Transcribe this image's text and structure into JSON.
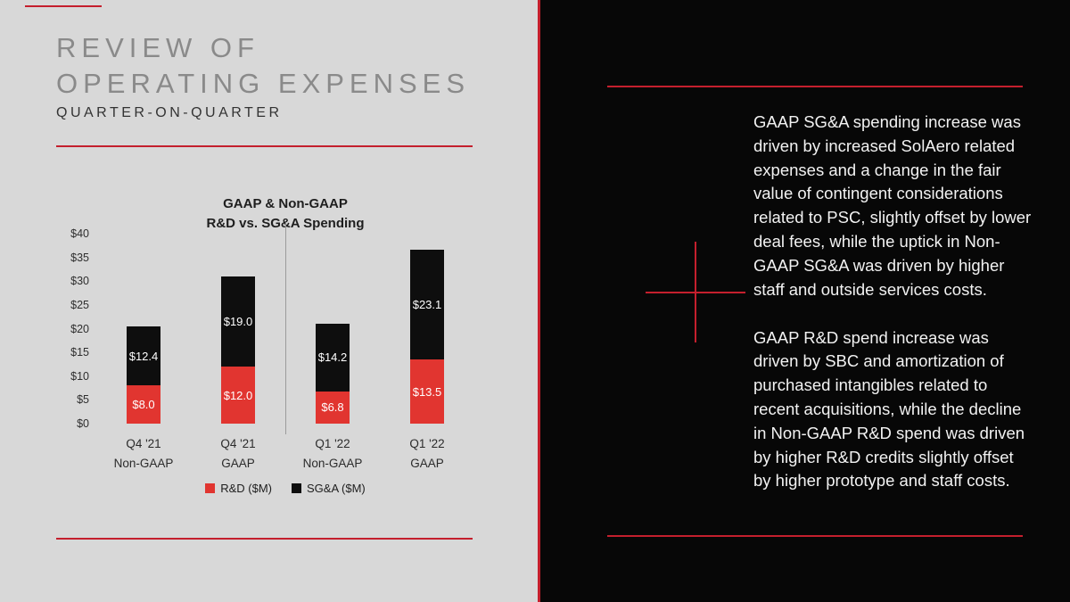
{
  "colors": {
    "accent_red": "#c41f2d",
    "bar_red": "#e13530",
    "bar_black": "#0e0e0e",
    "left_bg": "#d8d8d8",
    "right_bg": "#070707",
    "title_gray": "#8a8a8a"
  },
  "slide": {
    "title_line1": "REVIEW OF",
    "title_line2": "OPERATING EXPENSES",
    "subtitle": "QUARTER-ON-QUARTER"
  },
  "chart_data": {
    "type": "bar",
    "stacked": true,
    "title_line1": "GAAP & Non-GAAP",
    "title_line2": "R&D vs. SG&A Spending",
    "categories": [
      {
        "line1": "Q4 '21",
        "line2": "Non-GAAP"
      },
      {
        "line1": "Q4 '21",
        "line2": "GAAP"
      },
      {
        "line1": "Q1 '22",
        "line2": "Non-GAAP"
      },
      {
        "line1": "Q1 '22",
        "line2": "GAAP"
      }
    ],
    "series": [
      {
        "name": "R&D ($M)",
        "color": "#e13530",
        "values": [
          8.0,
          12.0,
          6.8,
          13.5
        ],
        "labels": [
          "$8.0",
          "$12.0",
          "$6.8",
          "$13.5"
        ]
      },
      {
        "name": "SG&A ($M)",
        "color": "#0e0e0e",
        "values": [
          12.4,
          19.0,
          14.2,
          23.1
        ],
        "labels": [
          "$12.4",
          "$19.0",
          "$14.2",
          "$23.1"
        ]
      }
    ],
    "y_ticks": [
      {
        "label": "$0",
        "value": 0
      },
      {
        "label": "$5",
        "value": 5
      },
      {
        "label": "$10",
        "value": 10
      },
      {
        "label": "$15",
        "value": 15
      },
      {
        "label": "$20",
        "value": 20
      },
      {
        "label": "$25",
        "value": 25
      },
      {
        "label": "$30",
        "value": 30
      },
      {
        "label": "$35",
        "value": 35
      },
      {
        "label": "$40",
        "value": 40
      }
    ],
    "ylim": [
      0,
      40
    ],
    "legend_position": "bottom",
    "grid": false
  },
  "commentary": {
    "paragraph1": "GAAP SG&A spending increase was driven by increased SolAero related expenses and a change in the fair value of contingent considerations related to PSC, slightly offset by lower deal fees, while the uptick in Non-GAAP SG&A was driven by higher staff and outside services costs.",
    "paragraph2": "GAAP R&D spend increase was driven by SBC and amortization of purchased intangibles related to recent acquisitions, while the decline in Non-GAAP R&D spend was driven by higher R&D credits slightly offset by higher prototype and staff costs."
  }
}
